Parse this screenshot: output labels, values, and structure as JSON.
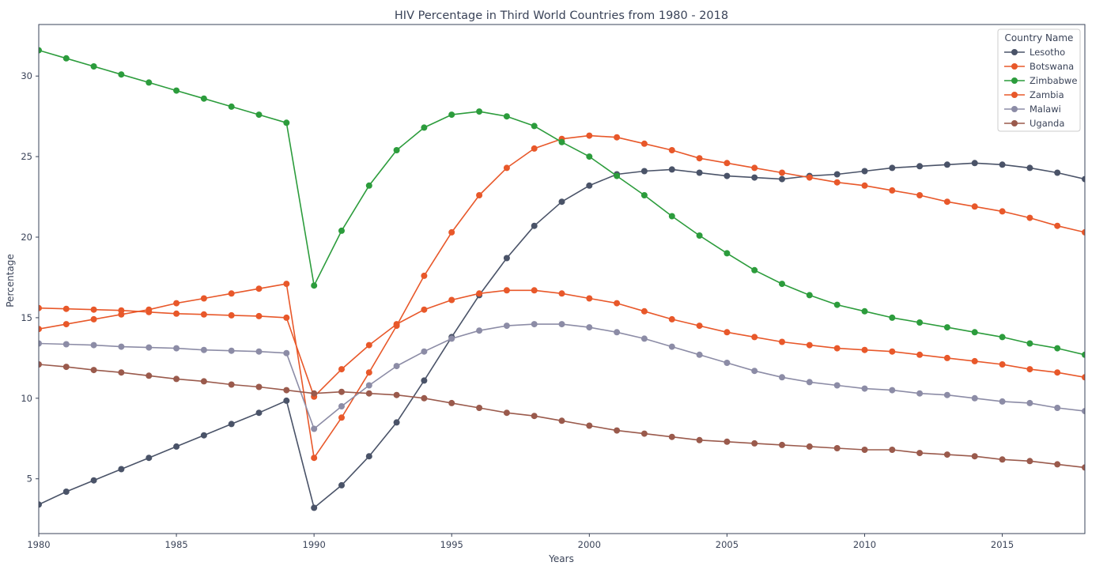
{
  "chart_data": {
    "type": "line",
    "title": "HIV Percentage in Third World Countries from 1980 - 2018",
    "xlabel": "Years",
    "ylabel": "Percentage",
    "xlim": [
      1980,
      2018
    ],
    "ylim": [
      1.6,
      33.2
    ],
    "xticks": [
      1980,
      1985,
      1990,
      1995,
      2000,
      2005,
      2010,
      2015
    ],
    "yticks": [
      5,
      10,
      15,
      20,
      25,
      30
    ],
    "grid": false,
    "legend": {
      "title": "Country Name",
      "position": "top-right"
    },
    "x": [
      1980,
      1981,
      1982,
      1983,
      1984,
      1985,
      1986,
      1987,
      1988,
      1989,
      1990,
      1991,
      1992,
      1993,
      1994,
      1995,
      1996,
      1997,
      1998,
      1999,
      2000,
      2001,
      2002,
      2003,
      2004,
      2005,
      2006,
      2007,
      2008,
      2009,
      2010,
      2011,
      2012,
      2013,
      2014,
      2015,
      2016,
      2017,
      2018
    ],
    "series": [
      {
        "name": "Lesotho",
        "color": "#4a5368",
        "values": [
          3.4,
          4.2,
          4.9,
          5.6,
          6.3,
          7.0,
          7.7,
          8.4,
          9.1,
          9.85,
          3.2,
          4.6,
          6.4,
          8.5,
          11.1,
          13.8,
          16.4,
          18.7,
          20.7,
          22.2,
          23.2,
          23.9,
          24.1,
          24.2,
          24.0,
          23.8,
          23.7,
          23.6,
          23.8,
          23.9,
          24.1,
          24.3,
          24.4,
          24.5,
          24.6,
          24.5,
          24.3,
          24.0,
          23.6
        ]
      },
      {
        "name": "Botswana",
        "color": "#e8582a",
        "values": [
          14.3,
          14.6,
          14.9,
          15.2,
          15.5,
          15.9,
          16.2,
          16.5,
          16.8,
          17.1,
          6.3,
          8.8,
          11.6,
          14.5,
          17.6,
          20.3,
          22.6,
          24.3,
          25.5,
          26.1,
          26.3,
          26.2,
          25.8,
          25.4,
          24.9,
          24.6,
          24.3,
          24.0,
          23.7,
          23.4,
          23.2,
          22.9,
          22.6,
          22.2,
          21.9,
          21.6,
          21.2,
          20.7,
          20.3
        ]
      },
      {
        "name": "Zimbabwe",
        "color": "#2c9c3c",
        "values": [
          31.6,
          31.1,
          30.6,
          30.1,
          29.6,
          29.1,
          28.6,
          28.1,
          27.6,
          27.1,
          17.0,
          20.4,
          23.2,
          25.4,
          26.8,
          27.6,
          27.8,
          27.5,
          26.9,
          25.9,
          25.0,
          23.8,
          22.6,
          21.3,
          20.1,
          19.0,
          17.95,
          17.1,
          16.4,
          15.8,
          15.4,
          15.0,
          14.7,
          14.4,
          14.1,
          13.8,
          13.4,
          13.1,
          12.7
        ]
      },
      {
        "name": "Zambia",
        "color": "#e8582a",
        "values": [
          15.6,
          15.55,
          15.5,
          15.45,
          15.35,
          15.25,
          15.2,
          15.15,
          15.1,
          15.0,
          10.1,
          11.8,
          13.3,
          14.6,
          15.5,
          16.1,
          16.5,
          16.7,
          16.7,
          16.5,
          16.2,
          15.9,
          15.4,
          14.9,
          14.5,
          14.1,
          13.8,
          13.5,
          13.3,
          13.1,
          13.0,
          12.9,
          12.7,
          12.5,
          12.3,
          12.1,
          11.8,
          11.6,
          11.3
        ]
      },
      {
        "name": "Malawi",
        "color": "#8c8ca6",
        "values": [
          13.4,
          13.35,
          13.3,
          13.2,
          13.15,
          13.1,
          13.0,
          12.95,
          12.9,
          12.8,
          8.1,
          9.5,
          10.8,
          12.0,
          12.9,
          13.7,
          14.2,
          14.5,
          14.6,
          14.6,
          14.4,
          14.1,
          13.7,
          13.2,
          12.7,
          12.2,
          11.7,
          11.3,
          11.0,
          10.8,
          10.6,
          10.5,
          10.3,
          10.2,
          10.0,
          9.8,
          9.7,
          9.4,
          9.2
        ]
      },
      {
        "name": "Uganda",
        "color": "#9a5a4c",
        "values": [
          12.1,
          11.95,
          11.75,
          11.6,
          11.4,
          11.2,
          11.05,
          10.85,
          10.7,
          10.5,
          10.3,
          10.4,
          10.3,
          10.2,
          10.0,
          9.7,
          9.4,
          9.1,
          8.9,
          8.6,
          8.3,
          8.0,
          7.8,
          7.6,
          7.4,
          7.3,
          7.2,
          7.1,
          7.0,
          6.9,
          6.8,
          6.8,
          6.6,
          6.5,
          6.4,
          6.2,
          6.1,
          5.9,
          5.7
        ]
      }
    ]
  }
}
